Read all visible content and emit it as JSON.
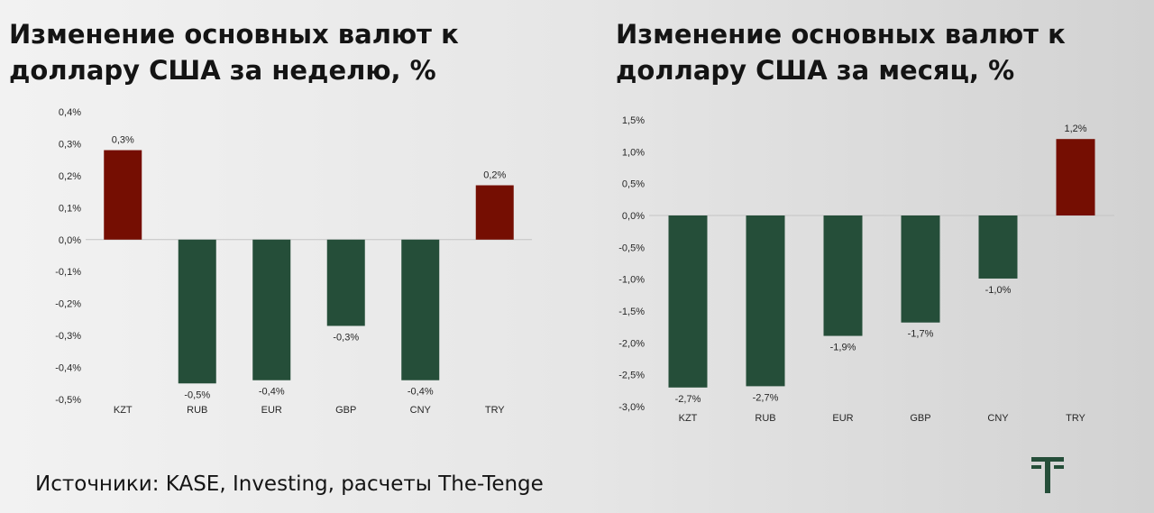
{
  "source_text": "Источники: KASE, Investing, расчеты The-Tenge",
  "colors": {
    "positive": "#750e02",
    "negative": "#254e39",
    "logo": "#254e39"
  },
  "chart_data": [
    {
      "type": "bar",
      "title": "Изменение основных валют к доллару США за неделю, %",
      "categories": [
        "KZT",
        "RUB",
        "EUR",
        "GBP",
        "CNY",
        "TRY"
      ],
      "values": [
        0.28,
        -0.45,
        -0.44,
        -0.27,
        -0.44,
        0.17
      ],
      "data_labels": [
        "0,3%",
        "-0,5%",
        "-0,4%",
        "-0,3%",
        "-0,4%",
        "0,2%"
      ],
      "yticks": [
        0.4,
        0.3,
        0.2,
        0.1,
        0.0,
        -0.1,
        -0.2,
        -0.3,
        -0.4,
        -0.5
      ],
      "ytick_labels": [
        "0,4%",
        "0,3%",
        "0,2%",
        "0,1%",
        "0,0%",
        "-0,1%",
        "-0,2%",
        "-0,3%",
        "-0,4%",
        "-0,5%"
      ],
      "ylim": [
        -0.5,
        0.4
      ],
      "grid": false,
      "legend": "none"
    },
    {
      "type": "bar",
      "title": "Изменение основных валют к доллару США за месяц, %",
      "categories": [
        "KZT",
        "RUB",
        "EUR",
        "GBP",
        "CNY",
        "TRY"
      ],
      "values": [
        -2.7,
        -2.68,
        -1.89,
        -1.68,
        -0.99,
        1.2
      ],
      "data_labels": [
        "-2,7%",
        "-2,7%",
        "-1,9%",
        "-1,7%",
        "-1,0%",
        "1,2%"
      ],
      "yticks": [
        1.5,
        1.0,
        0.5,
        0.0,
        -0.5,
        -1.0,
        -1.5,
        -2.0,
        -2.5,
        -3.0
      ],
      "ytick_labels": [
        "1,5%",
        "1,0%",
        "0,5%",
        "0,0%",
        "-0,5%",
        "-1,0%",
        "-1,5%",
        "-2,0%",
        "-2,5%",
        "-3,0%"
      ],
      "ylim": [
        -3.0,
        1.5
      ],
      "grid": false,
      "legend": "none"
    }
  ]
}
